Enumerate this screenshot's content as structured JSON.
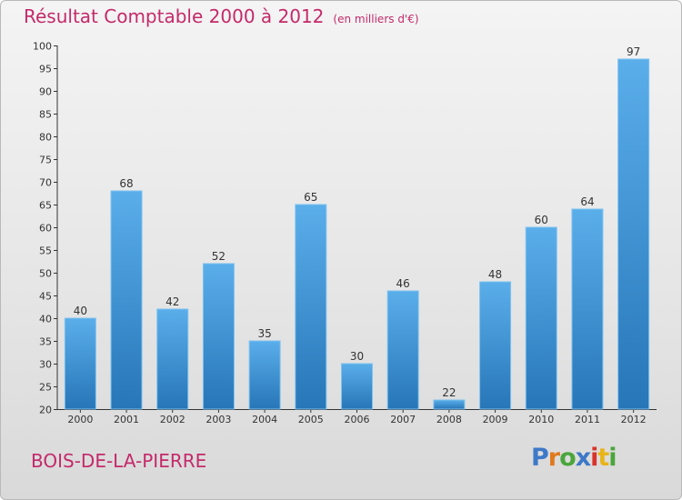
{
  "page": {
    "title": "Résultat Comptable 2000 à 2012",
    "unit": "(en milliers d'€)",
    "place": "BOIS-DE-LA-PIERRE",
    "logo": "Proxiti"
  },
  "colors": {
    "bar_top": "#5aaeea",
    "bar_bottom": "#2776b8",
    "title": "#c42a6a",
    "axis": "#333333",
    "grid": "#cfcfcf"
  },
  "chart_data": {
    "type": "bar",
    "title": "Résultat Comptable 2000 à 2012",
    "subtitle": "(en milliers d'€)",
    "xlabel": "",
    "ylabel": "",
    "categories": [
      "2000",
      "2001",
      "2002",
      "2003",
      "2004",
      "2005",
      "2006",
      "2007",
      "2008",
      "2009",
      "2010",
      "2011",
      "2012"
    ],
    "values": [
      40,
      68,
      42,
      52,
      35,
      65,
      30,
      46,
      22,
      48,
      60,
      64,
      97
    ],
    "ylim": [
      20,
      100
    ],
    "yticks": [
      20,
      25,
      30,
      35,
      40,
      45,
      50,
      55,
      60,
      65,
      70,
      75,
      80,
      85,
      90,
      95,
      100
    ],
    "grid": false,
    "data_labels": true
  }
}
